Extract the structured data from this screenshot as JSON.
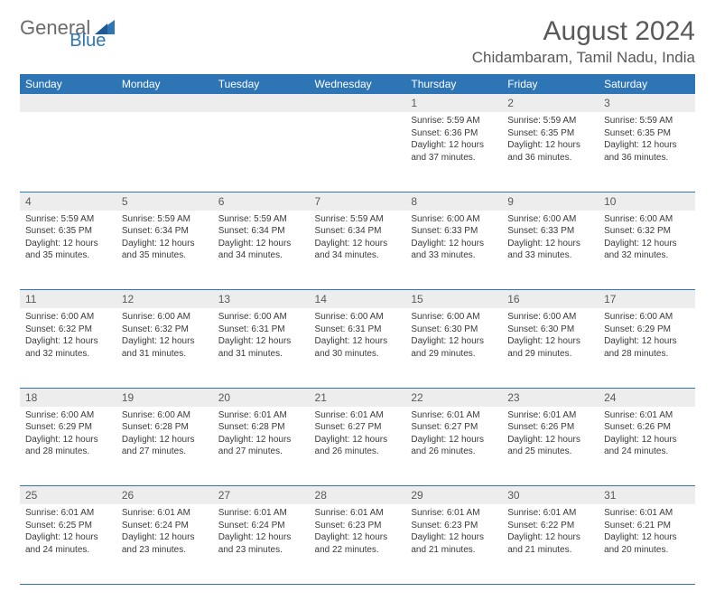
{
  "logo": {
    "part1": "General",
    "part2": "Blue"
  },
  "title": "August 2024",
  "location": "Chidambaram, Tamil Nadu, India",
  "colors": {
    "header_bg": "#2e75b6",
    "header_text": "#ffffff",
    "daynum_bg": "#ededed",
    "border": "#2e75b6",
    "text": "#3a3a3a",
    "title_text": "#595959"
  },
  "weekdays": [
    "Sunday",
    "Monday",
    "Tuesday",
    "Wednesday",
    "Thursday",
    "Friday",
    "Saturday"
  ],
  "weeks": [
    [
      null,
      null,
      null,
      null,
      {
        "n": "1",
        "sunrise": "Sunrise: 5:59 AM",
        "sunset": "Sunset: 6:36 PM",
        "daylight": "Daylight: 12 hours and 37 minutes."
      },
      {
        "n": "2",
        "sunrise": "Sunrise: 5:59 AM",
        "sunset": "Sunset: 6:35 PM",
        "daylight": "Daylight: 12 hours and 36 minutes."
      },
      {
        "n": "3",
        "sunrise": "Sunrise: 5:59 AM",
        "sunset": "Sunset: 6:35 PM",
        "daylight": "Daylight: 12 hours and 36 minutes."
      }
    ],
    [
      {
        "n": "4",
        "sunrise": "Sunrise: 5:59 AM",
        "sunset": "Sunset: 6:35 PM",
        "daylight": "Daylight: 12 hours and 35 minutes."
      },
      {
        "n": "5",
        "sunrise": "Sunrise: 5:59 AM",
        "sunset": "Sunset: 6:34 PM",
        "daylight": "Daylight: 12 hours and 35 minutes."
      },
      {
        "n": "6",
        "sunrise": "Sunrise: 5:59 AM",
        "sunset": "Sunset: 6:34 PM",
        "daylight": "Daylight: 12 hours and 34 minutes."
      },
      {
        "n": "7",
        "sunrise": "Sunrise: 5:59 AM",
        "sunset": "Sunset: 6:34 PM",
        "daylight": "Daylight: 12 hours and 34 minutes."
      },
      {
        "n": "8",
        "sunrise": "Sunrise: 6:00 AM",
        "sunset": "Sunset: 6:33 PM",
        "daylight": "Daylight: 12 hours and 33 minutes."
      },
      {
        "n": "9",
        "sunrise": "Sunrise: 6:00 AM",
        "sunset": "Sunset: 6:33 PM",
        "daylight": "Daylight: 12 hours and 33 minutes."
      },
      {
        "n": "10",
        "sunrise": "Sunrise: 6:00 AM",
        "sunset": "Sunset: 6:32 PM",
        "daylight": "Daylight: 12 hours and 32 minutes."
      }
    ],
    [
      {
        "n": "11",
        "sunrise": "Sunrise: 6:00 AM",
        "sunset": "Sunset: 6:32 PM",
        "daylight": "Daylight: 12 hours and 32 minutes."
      },
      {
        "n": "12",
        "sunrise": "Sunrise: 6:00 AM",
        "sunset": "Sunset: 6:32 PM",
        "daylight": "Daylight: 12 hours and 31 minutes."
      },
      {
        "n": "13",
        "sunrise": "Sunrise: 6:00 AM",
        "sunset": "Sunset: 6:31 PM",
        "daylight": "Daylight: 12 hours and 31 minutes."
      },
      {
        "n": "14",
        "sunrise": "Sunrise: 6:00 AM",
        "sunset": "Sunset: 6:31 PM",
        "daylight": "Daylight: 12 hours and 30 minutes."
      },
      {
        "n": "15",
        "sunrise": "Sunrise: 6:00 AM",
        "sunset": "Sunset: 6:30 PM",
        "daylight": "Daylight: 12 hours and 29 minutes."
      },
      {
        "n": "16",
        "sunrise": "Sunrise: 6:00 AM",
        "sunset": "Sunset: 6:30 PM",
        "daylight": "Daylight: 12 hours and 29 minutes."
      },
      {
        "n": "17",
        "sunrise": "Sunrise: 6:00 AM",
        "sunset": "Sunset: 6:29 PM",
        "daylight": "Daylight: 12 hours and 28 minutes."
      }
    ],
    [
      {
        "n": "18",
        "sunrise": "Sunrise: 6:00 AM",
        "sunset": "Sunset: 6:29 PM",
        "daylight": "Daylight: 12 hours and 28 minutes."
      },
      {
        "n": "19",
        "sunrise": "Sunrise: 6:00 AM",
        "sunset": "Sunset: 6:28 PM",
        "daylight": "Daylight: 12 hours and 27 minutes."
      },
      {
        "n": "20",
        "sunrise": "Sunrise: 6:01 AM",
        "sunset": "Sunset: 6:28 PM",
        "daylight": "Daylight: 12 hours and 27 minutes."
      },
      {
        "n": "21",
        "sunrise": "Sunrise: 6:01 AM",
        "sunset": "Sunset: 6:27 PM",
        "daylight": "Daylight: 12 hours and 26 minutes."
      },
      {
        "n": "22",
        "sunrise": "Sunrise: 6:01 AM",
        "sunset": "Sunset: 6:27 PM",
        "daylight": "Daylight: 12 hours and 26 minutes."
      },
      {
        "n": "23",
        "sunrise": "Sunrise: 6:01 AM",
        "sunset": "Sunset: 6:26 PM",
        "daylight": "Daylight: 12 hours and 25 minutes."
      },
      {
        "n": "24",
        "sunrise": "Sunrise: 6:01 AM",
        "sunset": "Sunset: 6:26 PM",
        "daylight": "Daylight: 12 hours and 24 minutes."
      }
    ],
    [
      {
        "n": "25",
        "sunrise": "Sunrise: 6:01 AM",
        "sunset": "Sunset: 6:25 PM",
        "daylight": "Daylight: 12 hours and 24 minutes."
      },
      {
        "n": "26",
        "sunrise": "Sunrise: 6:01 AM",
        "sunset": "Sunset: 6:24 PM",
        "daylight": "Daylight: 12 hours and 23 minutes."
      },
      {
        "n": "27",
        "sunrise": "Sunrise: 6:01 AM",
        "sunset": "Sunset: 6:24 PM",
        "daylight": "Daylight: 12 hours and 23 minutes."
      },
      {
        "n": "28",
        "sunrise": "Sunrise: 6:01 AM",
        "sunset": "Sunset: 6:23 PM",
        "daylight": "Daylight: 12 hours and 22 minutes."
      },
      {
        "n": "29",
        "sunrise": "Sunrise: 6:01 AM",
        "sunset": "Sunset: 6:23 PM",
        "daylight": "Daylight: 12 hours and 21 minutes."
      },
      {
        "n": "30",
        "sunrise": "Sunrise: 6:01 AM",
        "sunset": "Sunset: 6:22 PM",
        "daylight": "Daylight: 12 hours and 21 minutes."
      },
      {
        "n": "31",
        "sunrise": "Sunrise: 6:01 AM",
        "sunset": "Sunset: 6:21 PM",
        "daylight": "Daylight: 12 hours and 20 minutes."
      }
    ]
  ]
}
